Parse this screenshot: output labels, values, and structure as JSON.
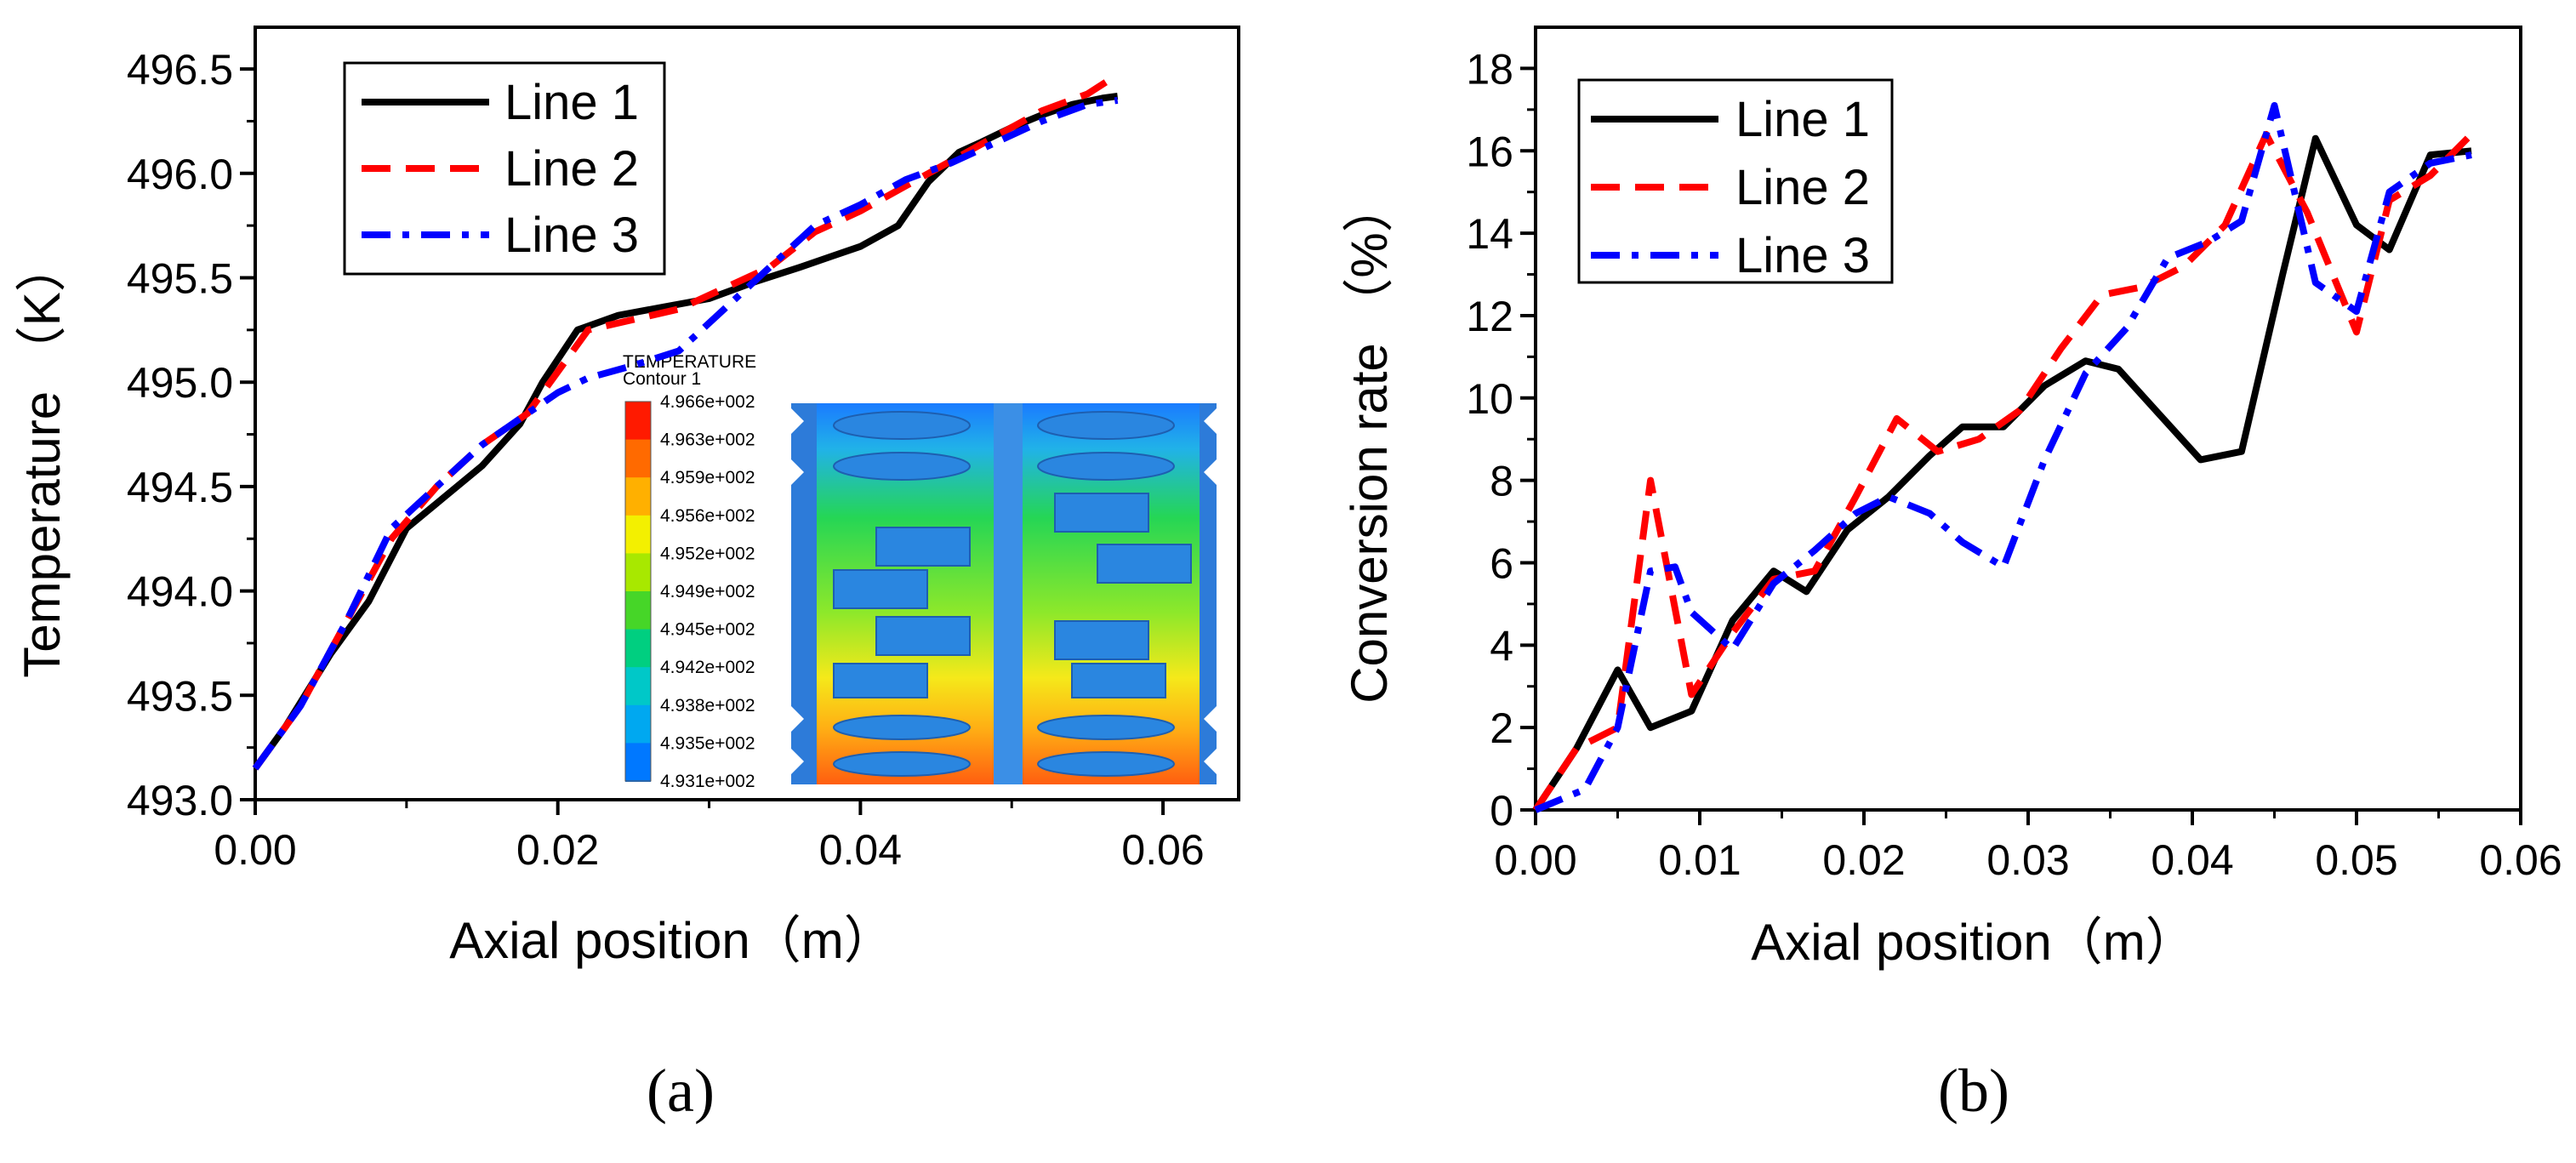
{
  "chart_data": [
    {
      "type": "line",
      "panel_label": "(a)",
      "xlabel": "Axial position（m）",
      "ylabel": "Temperature （K）",
      "xlim": [
        0.0,
        0.065
      ],
      "ylim": [
        493.0,
        496.7
      ],
      "xticks": [
        "0.00",
        "0.02",
        "0.04",
        "0.06"
      ],
      "yticks": [
        "493.0",
        "493.5",
        "494.0",
        "494.5",
        "495.0",
        "495.5",
        "496.0",
        "496.5"
      ],
      "legend_position": "top-left",
      "series": [
        {
          "name": "Line 1",
          "color": "#000000",
          "style": "solid",
          "x": [
            0,
            0.002,
            0.005,
            0.0075,
            0.01,
            0.0125,
            0.015,
            0.0175,
            0.019,
            0.0213,
            0.024,
            0.027,
            0.03,
            0.033,
            0.036,
            0.038,
            0.04,
            0.0425,
            0.0445,
            0.0465,
            0.048,
            0.05,
            0.052,
            0.054,
            0.056,
            0.057
          ],
          "y": [
            493.15,
            493.35,
            493.7,
            493.95,
            494.3,
            494.45,
            494.6,
            494.8,
            495.0,
            495.25,
            495.32,
            495.36,
            495.4,
            495.48,
            495.55,
            495.6,
            495.65,
            495.75,
            495.96,
            496.1,
            496.15,
            496.22,
            496.28,
            496.33,
            496.36,
            496.37
          ]
        },
        {
          "name": "Line 2",
          "color": "#ff0000",
          "style": "dashed",
          "x": [
            0,
            0.003,
            0.006,
            0.009,
            0.012,
            0.015,
            0.018,
            0.02,
            0.022,
            0.025,
            0.028,
            0.031,
            0.034,
            0.037,
            0.04,
            0.043,
            0.046,
            0.049,
            0.052,
            0.055,
            0.0565
          ],
          "y": [
            493.15,
            493.45,
            493.85,
            494.25,
            494.5,
            494.7,
            494.85,
            495.05,
            495.25,
            495.3,
            495.35,
            495.45,
            495.55,
            495.72,
            495.82,
            495.94,
            496.06,
            496.18,
            496.3,
            496.38,
            496.45
          ]
        },
        {
          "name": "Line 3",
          "color": "#0000ff",
          "style": "dashdot",
          "x": [
            0,
            0.003,
            0.006,
            0.009,
            0.012,
            0.015,
            0.018,
            0.02,
            0.022,
            0.025,
            0.028,
            0.031,
            0.034,
            0.037,
            0.04,
            0.043,
            0.046,
            0.049,
            0.052,
            0.055,
            0.057
          ],
          "y": [
            493.15,
            493.45,
            493.85,
            494.3,
            494.5,
            494.7,
            494.85,
            494.95,
            495.02,
            495.08,
            495.15,
            495.35,
            495.55,
            495.75,
            495.85,
            495.97,
            496.05,
            496.15,
            496.25,
            496.33,
            496.35
          ]
        }
      ]
    },
    {
      "type": "line",
      "panel_label": "(b)",
      "xlabel": "Axial position（m）",
      "ylabel": "Conversion rate （%）",
      "xlim": [
        0.0,
        0.06
      ],
      "ylim": [
        0,
        19
      ],
      "xticks": [
        "0.00",
        "0.01",
        "0.02",
        "0.03",
        "0.04",
        "0.05",
        "0.06"
      ],
      "yticks": [
        "0",
        "2",
        "4",
        "6",
        "8",
        "10",
        "12",
        "14",
        "16",
        "18"
      ],
      "legend_position": "top-left",
      "series": [
        {
          "name": "Line 1",
          "color": "#000000",
          "style": "solid",
          "x": [
            0,
            0.0025,
            0.005,
            0.007,
            0.0095,
            0.012,
            0.0145,
            0.0165,
            0.019,
            0.0215,
            0.024,
            0.026,
            0.0285,
            0.031,
            0.0335,
            0.0355,
            0.038,
            0.0405,
            0.043,
            0.0455,
            0.0475,
            0.05,
            0.052,
            0.0545,
            0.057
          ],
          "y": [
            0,
            1.5,
            3.4,
            2.0,
            2.4,
            4.6,
            5.8,
            5.3,
            6.8,
            7.6,
            8.6,
            9.3,
            9.3,
            10.3,
            10.9,
            10.7,
            9.6,
            8.5,
            8.7,
            13.0,
            16.3,
            14.2,
            13.6,
            15.9,
            16.0
          ]
        },
        {
          "name": "Line 2",
          "color": "#ff0000",
          "style": "dashed",
          "x": [
            0,
            0.0025,
            0.005,
            0.007,
            0.0095,
            0.012,
            0.0145,
            0.017,
            0.0195,
            0.022,
            0.0245,
            0.027,
            0.0295,
            0.032,
            0.0345,
            0.037,
            0.0395,
            0.042,
            0.0445,
            0.047,
            0.05,
            0.052,
            0.0545,
            0.057
          ],
          "y": [
            0,
            1.5,
            2.0,
            8.0,
            2.8,
            4.3,
            5.6,
            5.8,
            7.6,
            9.5,
            8.7,
            9.0,
            9.7,
            11.2,
            12.5,
            12.7,
            13.2,
            14.2,
            16.4,
            14.5,
            11.6,
            14.8,
            15.4,
            16.4
          ]
        },
        {
          "name": "Line 3",
          "color": "#0000ff",
          "style": "dashdot",
          "x": [
            0,
            0.003,
            0.005,
            0.007,
            0.0085,
            0.0095,
            0.012,
            0.0145,
            0.017,
            0.0195,
            0.0215,
            0.024,
            0.026,
            0.0285,
            0.031,
            0.0335,
            0.036,
            0.0385,
            0.041,
            0.043,
            0.045,
            0.0475,
            0.05,
            0.052,
            0.0545,
            0.057
          ],
          "y": [
            0,
            0.5,
            2.0,
            5.8,
            5.9,
            4.8,
            3.9,
            5.5,
            6.3,
            7.2,
            7.6,
            7.2,
            6.5,
            5.9,
            8.5,
            10.6,
            11.7,
            13.4,
            13.8,
            14.3,
            17.1,
            12.8,
            12.1,
            15.0,
            15.7,
            15.9
          ]
        }
      ]
    }
  ],
  "inset": {
    "title": "TEMPERATURE",
    "subtitle": "Contour 1",
    "colorbar": [
      {
        "label": "4.966e+002",
        "color": "#ff1a00"
      },
      {
        "label": "4.963e+002",
        "color": "#ff6a00"
      },
      {
        "label": "4.959e+002",
        "color": "#ffb000"
      },
      {
        "label": "4.956e+002",
        "color": "#f3f000"
      },
      {
        "label": "4.952e+002",
        "color": "#a8e800"
      },
      {
        "label": "4.949e+002",
        "color": "#46d628"
      },
      {
        "label": "4.945e+002",
        "color": "#00cf80"
      },
      {
        "label": "4.942e+002",
        "color": "#00c8c8"
      },
      {
        "label": "4.938e+002",
        "color": "#00a8f0"
      },
      {
        "label": "4.935e+002",
        "color": "#0078ff"
      },
      {
        "label": "4.931e+002",
        "color": "#0030ff"
      }
    ]
  }
}
